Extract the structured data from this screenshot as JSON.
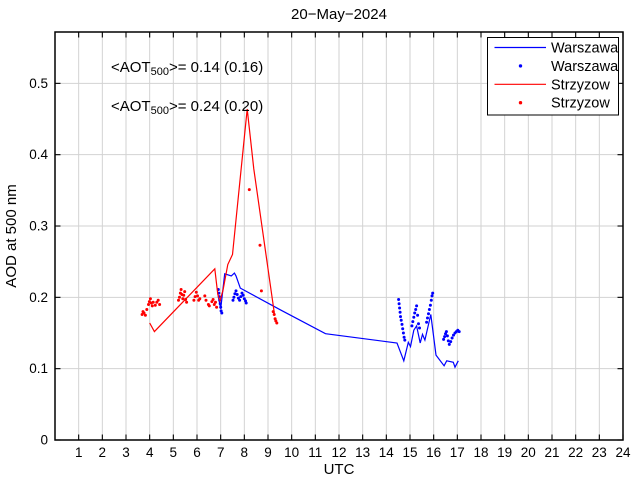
{
  "chart_data": {
    "type": "line",
    "title": "20−May−2024",
    "xlabel": "UTC",
    "ylabel": "AOD at 500 nm",
    "xlim": [
      0,
      24
    ],
    "ylim": [
      0,
      0.572
    ],
    "xticks": [
      1,
      2,
      3,
      4,
      5,
      6,
      7,
      8,
      9,
      10,
      11,
      12,
      13,
      14,
      15,
      16,
      17,
      18,
      19,
      20,
      21,
      22,
      23,
      24
    ],
    "yticks": [
      0,
      0.1,
      0.2,
      0.3,
      0.4,
      0.5
    ],
    "yticklabels": [
      "0",
      "0.1",
      "0.2",
      "0.3",
      "0.4",
      "0.5"
    ],
    "grid": true,
    "grid_color": "#d2d2d2",
    "frame_color": "#000000",
    "legend_position": "top-right",
    "annotations": [
      {
        "prefix": "<AOT",
        "sub": "500",
        "rest": ">= 0.14 (0.16)",
        "color": "#0000ff"
      },
      {
        "prefix": "<AOT",
        "sub": "500",
        "rest": ">= 0.24 (0.20)",
        "color": "#ff0000"
      }
    ],
    "legend": [
      {
        "label": "Warszawa",
        "marker": "line",
        "color": "#0000ff"
      },
      {
        "label": "Warszawa",
        "marker": "dot",
        "color": "#0000ff"
      },
      {
        "label": "Strzyzow",
        "marker": "line",
        "color": "#ff0000"
      },
      {
        "label": "Strzyzow",
        "marker": "dot",
        "color": "#ff0000"
      }
    ],
    "series": [
      {
        "name": "Warszawa",
        "type": "line",
        "color": "#0000ff",
        "points": [
          [
            6.9,
            0.201
          ],
          [
            7.0,
            0.184
          ],
          [
            7.17,
            0.233
          ],
          [
            7.45,
            0.23
          ],
          [
            7.58,
            0.234
          ],
          [
            7.65,
            0.23
          ],
          [
            7.83,
            0.213
          ],
          [
            9.55,
            0.182
          ],
          [
            11.43,
            0.149
          ],
          [
            14.45,
            0.136
          ],
          [
            14.74,
            0.111
          ],
          [
            14.93,
            0.137
          ],
          [
            15.02,
            0.131
          ],
          [
            15.16,
            0.154
          ],
          [
            15.28,
            0.16
          ],
          [
            15.43,
            0.136
          ],
          [
            15.53,
            0.148
          ],
          [
            15.63,
            0.14
          ],
          [
            15.88,
            0.176
          ],
          [
            16.1,
            0.119
          ],
          [
            16.44,
            0.104
          ],
          [
            16.55,
            0.111
          ],
          [
            16.83,
            0.109
          ],
          [
            16.9,
            0.102
          ],
          [
            17.04,
            0.111
          ]
        ]
      },
      {
        "name": "Warszawa",
        "type": "scatter",
        "color": "#0000ff",
        "points": [
          [
            6.9,
            0.211
          ],
          [
            6.92,
            0.206
          ],
          [
            6.94,
            0.201
          ],
          [
            6.96,
            0.196
          ],
          [
            6.98,
            0.191
          ],
          [
            7.0,
            0.186
          ],
          [
            7.02,
            0.181
          ],
          [
            7.05,
            0.178
          ],
          [
            7.52,
            0.196
          ],
          [
            7.56,
            0.2
          ],
          [
            7.6,
            0.205
          ],
          [
            7.65,
            0.209
          ],
          [
            7.7,
            0.204
          ],
          [
            7.75,
            0.199
          ],
          [
            7.8,
            0.196
          ],
          [
            7.85,
            0.201
          ],
          [
            7.9,
            0.206
          ],
          [
            7.95,
            0.203
          ],
          [
            8.0,
            0.198
          ],
          [
            8.05,
            0.195
          ],
          [
            8.08,
            0.192
          ],
          [
            14.52,
            0.197
          ],
          [
            14.54,
            0.191
          ],
          [
            14.56,
            0.185
          ],
          [
            14.58,
            0.179
          ],
          [
            14.6,
            0.173
          ],
          [
            14.63,
            0.168
          ],
          [
            14.66,
            0.162
          ],
          [
            14.69,
            0.156
          ],
          [
            14.72,
            0.15
          ],
          [
            14.75,
            0.144
          ],
          [
            14.78,
            0.14
          ],
          [
            15.08,
            0.16
          ],
          [
            15.12,
            0.166
          ],
          [
            15.16,
            0.172
          ],
          [
            15.2,
            0.178
          ],
          [
            15.24,
            0.183
          ],
          [
            15.28,
            0.188
          ],
          [
            15.32,
            0.175
          ],
          [
            15.36,
            0.163
          ],
          [
            15.4,
            0.157
          ],
          [
            15.7,
            0.165
          ],
          [
            15.74,
            0.171
          ],
          [
            15.78,
            0.177
          ],
          [
            15.82,
            0.183
          ],
          [
            15.86,
            0.189
          ],
          [
            15.9,
            0.196
          ],
          [
            15.93,
            0.202
          ],
          [
            15.96,
            0.206
          ],
          [
            16.42,
            0.141
          ],
          [
            16.46,
            0.145
          ],
          [
            16.5,
            0.149
          ],
          [
            16.54,
            0.152
          ],
          [
            16.58,
            0.146
          ],
          [
            16.62,
            0.139
          ],
          [
            16.66,
            0.134
          ],
          [
            16.72,
            0.138
          ],
          [
            16.78,
            0.143
          ],
          [
            16.84,
            0.147
          ],
          [
            16.9,
            0.15
          ],
          [
            16.96,
            0.152
          ],
          [
            17.02,
            0.154
          ],
          [
            17.08,
            0.152
          ]
        ]
      },
      {
        "name": "Strzyzow",
        "type": "line",
        "color": "#ff0000",
        "points": [
          [
            4.0,
            0.164
          ],
          [
            4.2,
            0.152
          ],
          [
            6.75,
            0.24
          ],
          [
            6.88,
            0.204
          ],
          [
            6.97,
            0.195
          ],
          [
            7.1,
            0.21
          ],
          [
            7.3,
            0.246
          ],
          [
            7.5,
            0.26
          ],
          [
            8.12,
            0.464
          ],
          [
            8.4,
            0.38
          ],
          [
            9.27,
            0.177
          ]
        ]
      },
      {
        "name": "Strzyzow",
        "type": "scatter",
        "color": "#ff0000",
        "points": [
          [
            3.68,
            0.176
          ],
          [
            3.72,
            0.18
          ],
          [
            3.76,
            0.178
          ],
          [
            3.82,
            0.175
          ],
          [
            3.88,
            0.183
          ],
          [
            3.95,
            0.19
          ],
          [
            3.99,
            0.194
          ],
          [
            4.03,
            0.198
          ],
          [
            4.07,
            0.192
          ],
          [
            4.11,
            0.188
          ],
          [
            4.15,
            0.193
          ],
          [
            4.24,
            0.189
          ],
          [
            4.3,
            0.193
          ],
          [
            4.36,
            0.196
          ],
          [
            4.42,
            0.19
          ],
          [
            5.22,
            0.196
          ],
          [
            5.26,
            0.2
          ],
          [
            5.3,
            0.206
          ],
          [
            5.33,
            0.211
          ],
          [
            5.36,
            0.204
          ],
          [
            5.4,
            0.198
          ],
          [
            5.44,
            0.203
          ],
          [
            5.48,
            0.208
          ],
          [
            5.52,
            0.197
          ],
          [
            5.56,
            0.193
          ],
          [
            5.87,
            0.196
          ],
          [
            5.92,
            0.201
          ],
          [
            5.97,
            0.207
          ],
          [
            6.02,
            0.202
          ],
          [
            6.07,
            0.196
          ],
          [
            6.12,
            0.198
          ],
          [
            6.33,
            0.202
          ],
          [
            6.38,
            0.196
          ],
          [
            6.48,
            0.19
          ],
          [
            6.52,
            0.188
          ],
          [
            6.63,
            0.194
          ],
          [
            6.68,
            0.197
          ],
          [
            6.73,
            0.19
          ],
          [
            6.78,
            0.193
          ],
          [
            6.83,
            0.186
          ],
          [
            8.21,
            0.351
          ],
          [
            8.66,
            0.273
          ],
          [
            8.72,
            0.209
          ],
          [
            9.22,
            0.18
          ],
          [
            9.26,
            0.176
          ],
          [
            9.3,
            0.17
          ],
          [
            9.33,
            0.167
          ],
          [
            9.37,
            0.164
          ]
        ]
      }
    ]
  }
}
